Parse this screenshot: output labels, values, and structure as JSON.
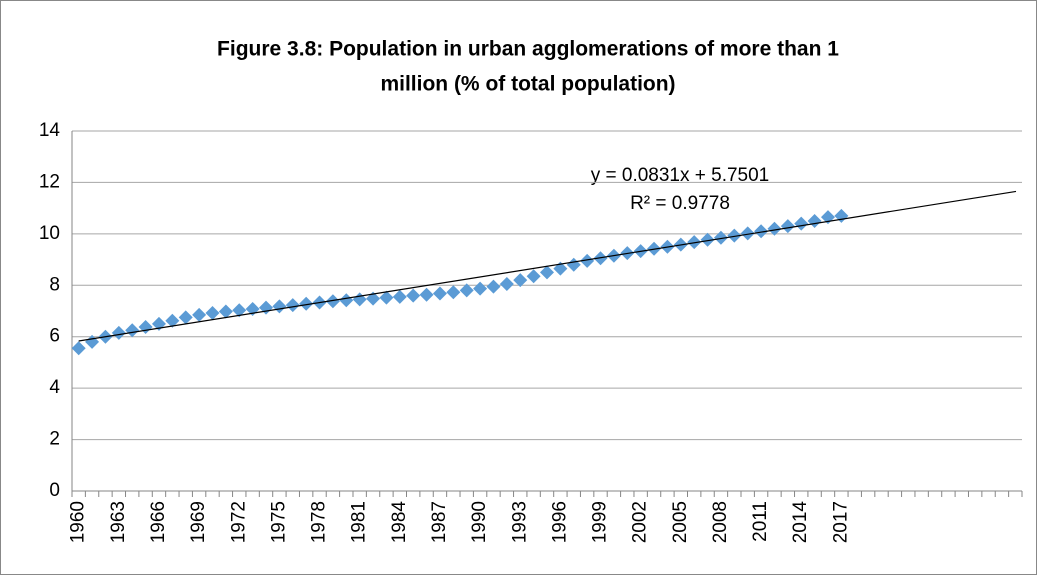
{
  "chart_data": {
    "type": "line-markers",
    "title": "Figure 3.8: Population in urban agglomerations of more than 1",
    "subtitle": "million (% of total population)",
    "categories": [
      "1960",
      null,
      null,
      "1963",
      null,
      null,
      "1966",
      null,
      null,
      "1969",
      null,
      null,
      "1972",
      null,
      null,
      "1975",
      null,
      null,
      "1978",
      null,
      null,
      "1981",
      null,
      null,
      "1984",
      null,
      null,
      "1987",
      null,
      null,
      "1990",
      null,
      null,
      "1993",
      null,
      null,
      "1996",
      null,
      null,
      "1999",
      null,
      null,
      "2002",
      null,
      null,
      "2005",
      null,
      null,
      "2008",
      null,
      null,
      "2011",
      null,
      null,
      "2014",
      null,
      null,
      "2017",
      null,
      null,
      null,
      null,
      null,
      null,
      null,
      null,
      null,
      null,
      null,
      null,
      null
    ],
    "values": [
      5.55,
      5.8,
      6.0,
      6.15,
      6.25,
      6.38,
      6.5,
      6.62,
      6.75,
      6.85,
      6.92,
      6.98,
      7.03,
      7.08,
      7.13,
      7.18,
      7.23,
      7.28,
      7.33,
      7.38,
      7.42,
      7.45,
      7.48,
      7.52,
      7.55,
      7.6,
      7.63,
      7.68,
      7.73,
      7.8,
      7.87,
      7.95,
      8.05,
      8.2,
      8.35,
      8.5,
      8.65,
      8.8,
      8.95,
      9.05,
      9.15,
      9.25,
      9.33,
      9.42,
      9.5,
      9.58,
      9.68,
      9.77,
      9.85,
      9.93,
      10.02,
      10.1,
      10.2,
      10.3,
      10.4,
      10.5,
      10.65,
      10.7,
      null,
      null,
      null,
      null,
      null,
      null,
      null,
      null,
      null,
      null,
      null,
      null,
      null
    ],
    "color": "#5b9bd5",
    "trendline": {
      "slope": 0.0831,
      "intercept": 5.7501,
      "color": "#000000",
      "equation": "y = 0.0831x + 5.7501",
      "r_squared": "R² = 0.9778"
    },
    "ylim": [
      0,
      14
    ],
    "yticks": [
      0,
      2,
      4,
      6,
      8,
      10,
      12,
      14
    ],
    "grid": true
  }
}
